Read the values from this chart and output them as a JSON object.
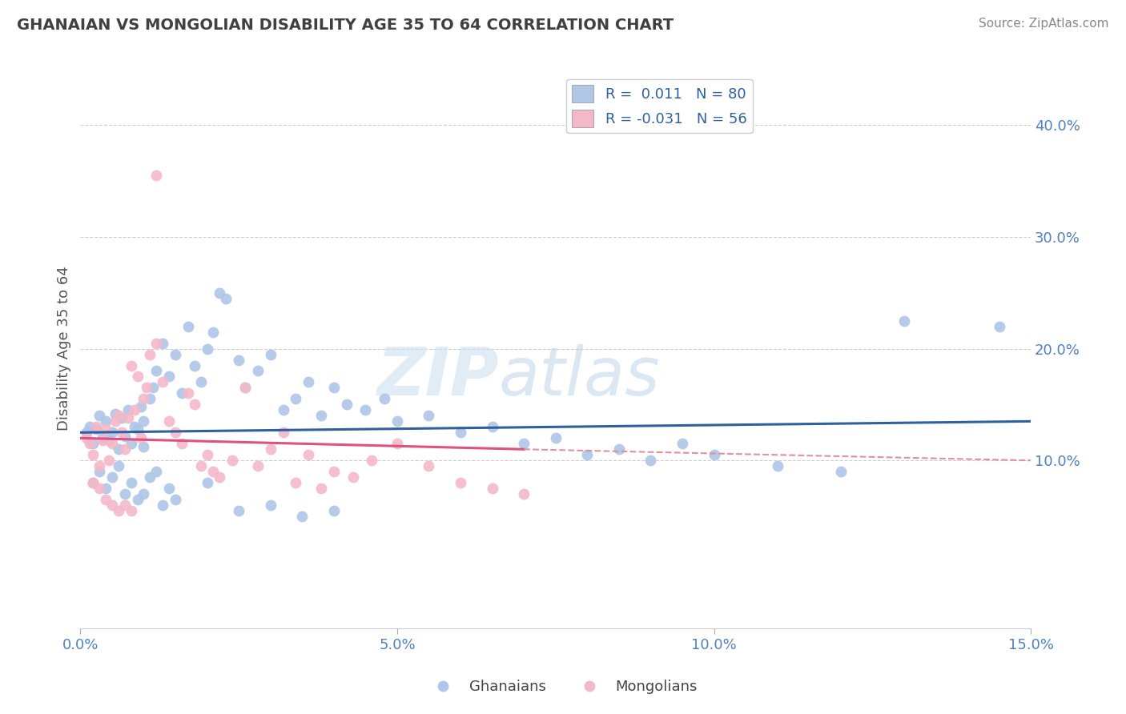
{
  "title": "GHANAIAN VS MONGOLIAN DISABILITY AGE 35 TO 64 CORRELATION CHART",
  "source_text": "Source: ZipAtlas.com",
  "ylabel": "Disability Age 35 to 64",
  "xlabel_ticks": [
    "0.0%",
    "5.0%",
    "10.0%",
    "15.0%"
  ],
  "xlabel_vals": [
    0.0,
    5.0,
    10.0,
    15.0
  ],
  "ylabel_ticks": [
    "10.0%",
    "20.0%",
    "30.0%",
    "40.0%"
  ],
  "ylabel_vals": [
    10.0,
    20.0,
    30.0,
    40.0
  ],
  "xlim": [
    0.0,
    15.0
  ],
  "ylim": [
    -5.0,
    45.0
  ],
  "watermark": "ZIPatlas",
  "blue_scatter_x": [
    0.1,
    0.15,
    0.2,
    0.25,
    0.3,
    0.35,
    0.4,
    0.45,
    0.5,
    0.55,
    0.6,
    0.65,
    0.7,
    0.75,
    0.8,
    0.85,
    0.9,
    0.95,
    1.0,
    1.0,
    1.1,
    1.15,
    1.2,
    1.3,
    1.4,
    1.5,
    1.6,
    1.7,
    1.8,
    1.9,
    2.0,
    2.1,
    2.2,
    2.3,
    2.5,
    2.6,
    2.8,
    3.0,
    3.2,
    3.4,
    3.6,
    3.8,
    4.0,
    4.2,
    4.5,
    4.8,
    5.0,
    5.5,
    6.0,
    6.5,
    7.0,
    7.5,
    8.0,
    8.5,
    9.0,
    9.5,
    10.0,
    11.0,
    12.0,
    13.0,
    0.2,
    0.3,
    0.4,
    0.5,
    0.6,
    0.7,
    0.8,
    0.9,
    1.0,
    1.1,
    1.2,
    1.3,
    1.4,
    1.5,
    2.0,
    2.5,
    3.0,
    3.5,
    4.0,
    14.5
  ],
  "blue_scatter_y": [
    12.5,
    13.0,
    11.5,
    12.8,
    14.0,
    12.0,
    13.5,
    11.8,
    12.5,
    14.2,
    11.0,
    13.8,
    12.2,
    14.5,
    11.5,
    13.0,
    12.8,
    14.8,
    11.2,
    13.5,
    15.5,
    16.5,
    18.0,
    20.5,
    17.5,
    19.5,
    16.0,
    22.0,
    18.5,
    17.0,
    20.0,
    21.5,
    25.0,
    24.5,
    19.0,
    16.5,
    18.0,
    19.5,
    14.5,
    15.5,
    17.0,
    14.0,
    16.5,
    15.0,
    14.5,
    15.5,
    13.5,
    14.0,
    12.5,
    13.0,
    11.5,
    12.0,
    10.5,
    11.0,
    10.0,
    11.5,
    10.5,
    9.5,
    9.0,
    22.5,
    8.0,
    9.0,
    7.5,
    8.5,
    9.5,
    7.0,
    8.0,
    6.5,
    7.0,
    8.5,
    9.0,
    6.0,
    7.5,
    6.5,
    8.0,
    5.5,
    6.0,
    5.0,
    5.5,
    22.0
  ],
  "pink_scatter_x": [
    0.1,
    0.15,
    0.2,
    0.25,
    0.3,
    0.35,
    0.4,
    0.45,
    0.5,
    0.55,
    0.6,
    0.65,
    0.7,
    0.75,
    0.8,
    0.85,
    0.9,
    0.95,
    1.0,
    1.05,
    1.1,
    1.2,
    1.3,
    1.4,
    1.5,
    1.6,
    1.7,
    1.8,
    1.9,
    2.0,
    2.1,
    2.2,
    2.4,
    2.6,
    2.8,
    3.0,
    3.2,
    3.4,
    3.6,
    3.8,
    4.0,
    4.3,
    4.6,
    5.0,
    5.5,
    6.0,
    6.5,
    7.0,
    0.2,
    0.3,
    0.4,
    0.5,
    0.6,
    0.7,
    0.8,
    1.2
  ],
  "pink_scatter_y": [
    12.0,
    11.5,
    10.5,
    13.0,
    9.5,
    11.8,
    12.8,
    10.0,
    11.5,
    13.5,
    14.0,
    12.5,
    11.0,
    13.8,
    18.5,
    14.5,
    17.5,
    12.0,
    15.5,
    16.5,
    19.5,
    20.5,
    17.0,
    13.5,
    12.5,
    11.5,
    16.0,
    15.0,
    9.5,
    10.5,
    9.0,
    8.5,
    10.0,
    16.5,
    9.5,
    11.0,
    12.5,
    8.0,
    10.5,
    7.5,
    9.0,
    8.5,
    10.0,
    11.5,
    9.5,
    8.0,
    7.5,
    7.0,
    8.0,
    7.5,
    6.5,
    6.0,
    5.5,
    6.0,
    5.5,
    35.5
  ],
  "blue_line_start_y": 12.5,
  "blue_line_end_y": 13.5,
  "pink_line_start_y": 12.0,
  "pink_line_solid_end_x": 7.0,
  "pink_line_solid_end_y": 11.0,
  "pink_line_dash_end_y": 10.0,
  "blue_line_color": "#3060a0",
  "pink_line_color": "#e05080",
  "pink_dash_color": "#e090a0",
  "dot_blue_color": "#aec6e8",
  "dot_pink_color": "#f4b8c8",
  "background_color": "#ffffff",
  "grid_color": "#cccccc",
  "title_color": "#404040",
  "axis_label_color": "#5080c0"
}
